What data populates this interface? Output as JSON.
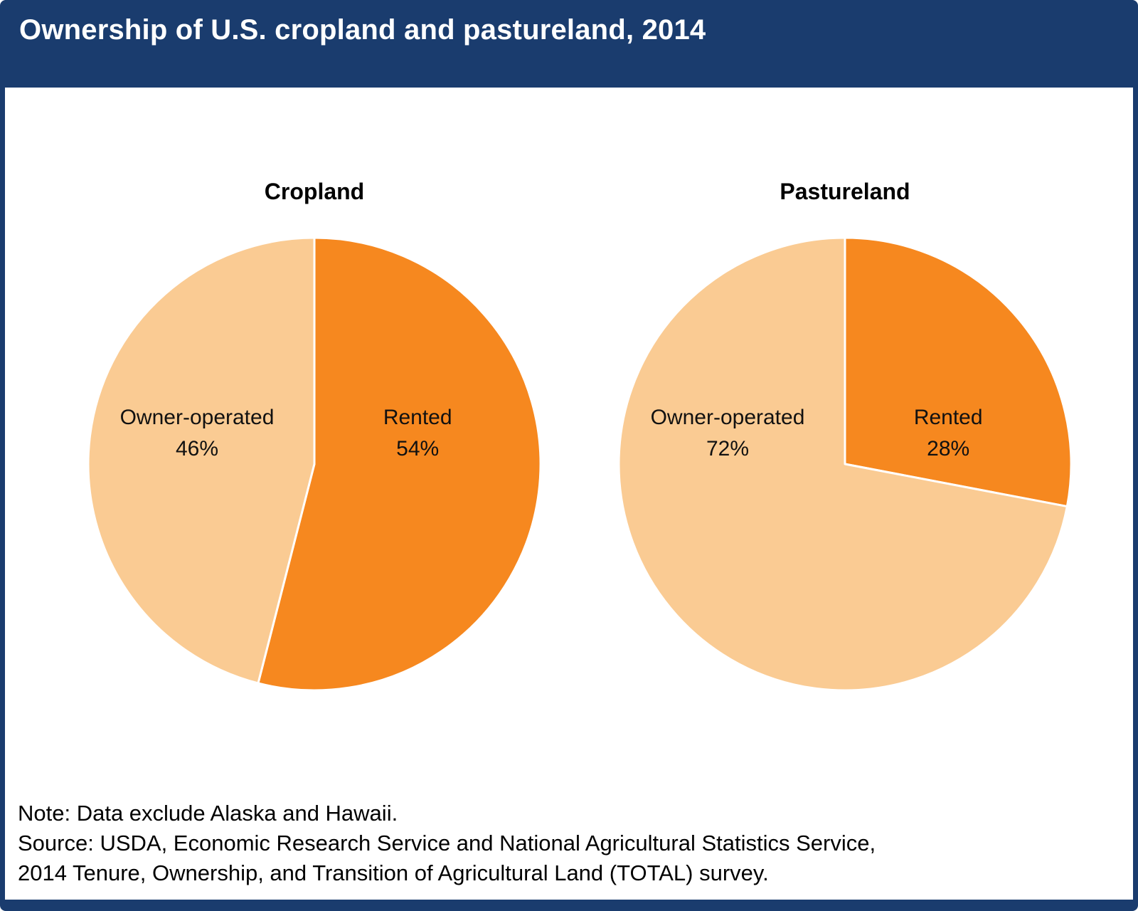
{
  "header": {
    "title": "Ownership of U.S. cropland and pastureland, 2014"
  },
  "colors": {
    "navy": "#1A3C6E",
    "rented_orange": "#F6881F",
    "owner_light_orange": "#FACB93",
    "slice_stroke": "#FFFFFF",
    "background": "#FFFFFF",
    "label_text": "#111111"
  },
  "chart_data": [
    {
      "type": "pie",
      "title": "Cropland",
      "start_angle_deg": 0,
      "direction": "clockwise",
      "legend_position": "none",
      "slices": [
        {
          "label": "Rented",
          "value": 54,
          "display": "54%",
          "color": "#F6881F"
        },
        {
          "label": "Owner-operated",
          "value": 46,
          "display": "46%",
          "color": "#FACB93"
        }
      ]
    },
    {
      "type": "pie",
      "title": "Pastureland",
      "start_angle_deg": 0,
      "direction": "clockwise",
      "legend_position": "none",
      "slices": [
        {
          "label": "Rented",
          "value": 28,
          "display": "28%",
          "color": "#F6881F"
        },
        {
          "label": "Owner-operated",
          "value": 72,
          "display": "72%",
          "color": "#FACB93"
        }
      ]
    }
  ],
  "notes": {
    "line1": "Note: Data exclude Alaska and Hawaii.",
    "line2": "Source: USDA, Economic Research Service and National Agricultural Statistics Service,",
    "line3": "2014 Tenure, Ownership, and Transition of Agricultural Land (TOTAL) survey."
  }
}
